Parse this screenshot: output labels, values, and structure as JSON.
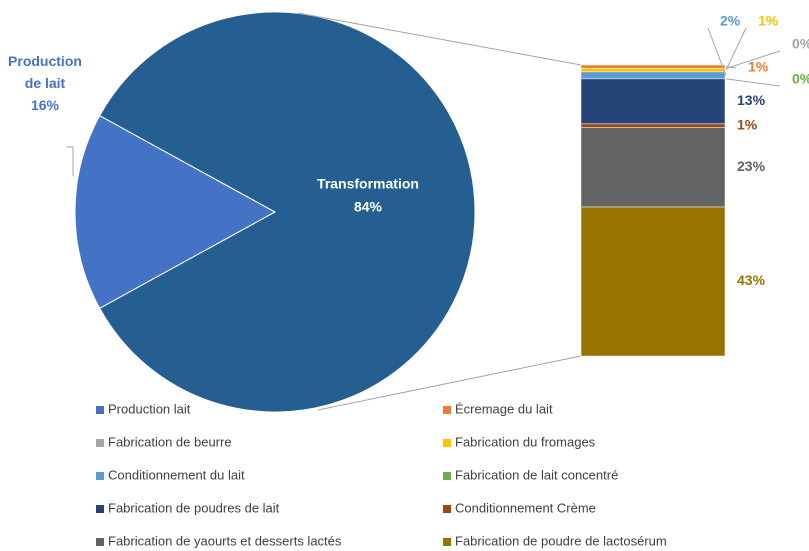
{
  "chart_data": {
    "type": "pie",
    "slices": [
      {
        "name": "Production de lait",
        "legend": "Production lait",
        "value": 16,
        "value_label": "16%",
        "color": "#4472c4"
      },
      {
        "name": "Transformation",
        "value": 84,
        "value_label": "84%",
        "color": "#255e91"
      }
    ],
    "breakdown": [
      {
        "name": "Écremage du lait",
        "value": 1,
        "value_label": "1%",
        "color": "#ed7d31"
      },
      {
        "name": "Fabrication de beurre",
        "value": 0,
        "value_label": "0%",
        "color": "#a5a5a5"
      },
      {
        "name": "Fabrication du fromages",
        "value": 1,
        "value_label": "1%",
        "color": "#ffc000"
      },
      {
        "name": "Conditionnement du lait",
        "value": 2,
        "value_label": "2%",
        "color": "#5b9bd5"
      },
      {
        "name": "Fabrication de lait concentré",
        "value": 0,
        "value_label": "0%",
        "color": "#70ad47"
      },
      {
        "name": "Fabrication de poudres de lait",
        "value": 13,
        "value_label": "13%",
        "color": "#264478"
      },
      {
        "name": "Conditionnement Crème",
        "value": 1,
        "value_label": "1%",
        "color": "#9e480e"
      },
      {
        "name": "Fabrication de yaourts et desserts lactés",
        "value": 23,
        "value_label": "23%",
        "color": "#636363"
      },
      {
        "name": "Fabrication de poudre de lactosérum",
        "value": 43,
        "value_label": "43%",
        "color": "#997300"
      }
    ]
  }
}
